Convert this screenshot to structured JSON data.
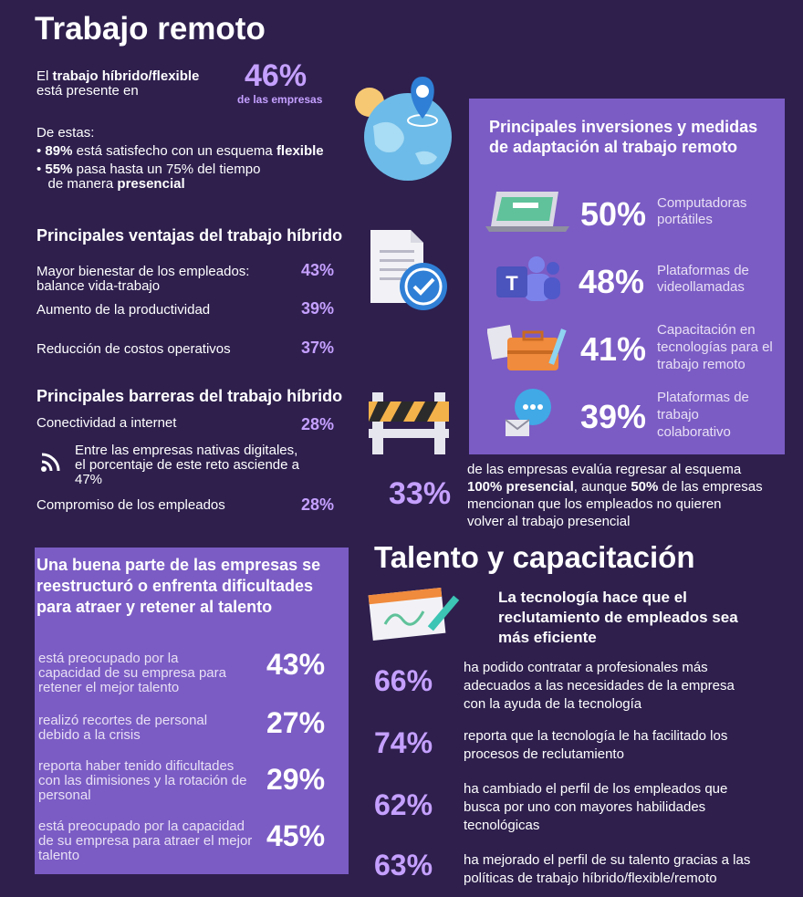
{
  "title": "Trabajo remoto",
  "intro": {
    "line1_pre": "El ",
    "line1_bold": "trabajo híbrido/flexible",
    "line2": "está presente en",
    "stat": "46%",
    "stat_caption": "de las empresas",
    "estas": "De estas:",
    "bullet1_pct": "89%",
    "bullet1_text": " está satisfecho con un esquema ",
    "bullet1_bold": "flexible",
    "bullet2_pct": "55%",
    "bullet2_text": " pasa hasta un 75% del tiempo",
    "bullet2_line2_pre": "de manera ",
    "bullet2_line2_bold": "presencial"
  },
  "ventajas": {
    "heading": "Principales ventajas del trabajo híbrido",
    "items": [
      {
        "label": "Mayor bienestar de los empleados: balance vida-trabajo",
        "value": "43%"
      },
      {
        "label": "Aumento de la productividad",
        "value": "39%"
      },
      {
        "label": "Reducción de costos operativos",
        "value": "37%"
      }
    ]
  },
  "barreras": {
    "heading": "Principales barreras del trabajo híbrido",
    "item1_label": "Conectividad a internet",
    "item1_value": "28%",
    "note": "Entre las empresas nativas digitales, el porcentaje de este reto asciende a 47%",
    "item2_label": "Compromiso de los empleados",
    "item2_value": "28%"
  },
  "inversiones": {
    "heading": "Principales inversiones y medidas de adaptación al trabajo remoto",
    "items": [
      {
        "value": "50%",
        "label": "Computadoras portátiles",
        "icon": "laptop-icon"
      },
      {
        "value": "48%",
        "label": "Plataformas de videollamadas",
        "icon": "teams-icon"
      },
      {
        "value": "41%",
        "label": "Capacitación en tecnologías para el trabajo remoto",
        "icon": "toolbox-icon"
      },
      {
        "value": "39%",
        "label": "Plataformas de trabajo colaborativo",
        "icon": "chat-icon"
      }
    ]
  },
  "regreso": {
    "stat": "33%",
    "line1": "de las empresas evalúa regresar al esquema",
    "line2_bold1": "100% presencial",
    "line2_mid": ", aunque ",
    "line2_bold2": "50%",
    "line2_end": " de las empresas",
    "line3": "mencionan que los empleados no quieren",
    "line4": "volver al trabajo presencial"
  },
  "talento_box": {
    "heading": "Una buena parte de las empresas se reestructuró o enfrenta dificultades para atraer y retener al talento",
    "items": [
      {
        "label": "está preocupado por la capacidad de su empresa para retener el mejor talento",
        "value": "43%"
      },
      {
        "label": "realizó recortes de personal debido a la crisis",
        "value": "27%"
      },
      {
        "label": "reporta haber tenido dificultades con las dimisiones y la rotación de personal",
        "value": "29%"
      },
      {
        "label": "está preocupado por la capacidad de su empresa para atraer el mejor talento",
        "value": "45%"
      }
    ]
  },
  "capacitacion": {
    "title": "Talento y capacitación",
    "subheading": "La tecnología hace que el reclutamiento de empleados sea más eficiente",
    "items": [
      {
        "value": "66%",
        "label": "ha podido contratar a profesionales más adecuados a las necesidades de la empresa con la ayuda de la tecnología"
      },
      {
        "value": "74%",
        "label": "reporta que la tecnología le ha facilitado los procesos de reclutamiento"
      },
      {
        "value": "62%",
        "label": "ha cambiado el perfil de los empleados que busca por uno con mayores habilidades tecnológicas"
      },
      {
        "value": "63%",
        "label": "ha mejorado el perfil de su talento gracias a las políticas de trabajo híbrido/flexible/remoto"
      }
    ]
  },
  "colors": {
    "background": "#2e1f4d",
    "box": "#7b5cc4",
    "accent": "#c5a0ff"
  }
}
